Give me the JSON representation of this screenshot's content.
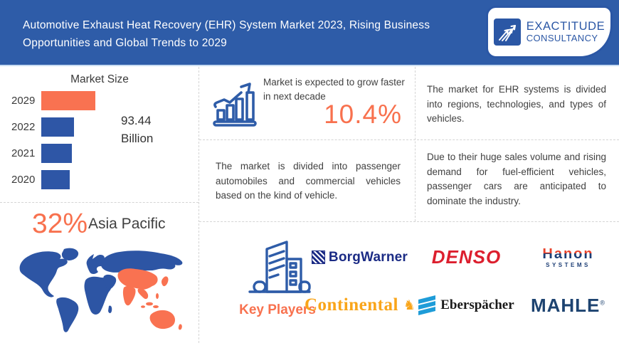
{
  "header": {
    "title": "Automotive Exhaust Heat Recovery (EHR) System Market 2023, Rising Business Opportunities and Global Trends to 2029",
    "logo": {
      "line1": "EXACTITUDE",
      "line2": "CONSULTANCY"
    }
  },
  "colors": {
    "primary_blue": "#2e5ca8",
    "bar_blue": "#2e56a6",
    "accent_orange": "#f8714e",
    "map_blue": "#2d55a4",
    "map_orange": "#f97251"
  },
  "chart_data": {
    "type": "bar",
    "orientation": "horizontal",
    "title": "Market Size",
    "categories": [
      "2029",
      "2022",
      "2021",
      "2020"
    ],
    "values_pct_of_max": [
      100,
      61,
      57,
      53
    ],
    "values_billion_est": [
      93.44,
      57,
      53,
      50
    ],
    "value_label": "93.44\nBillion",
    "bar_colors": [
      "#f97251",
      "#2e56a6",
      "#2e56a6",
      "#2e56a6"
    ],
    "xlabel": "",
    "ylabel": "",
    "grid": false,
    "legend": false
  },
  "growth": {
    "caption": "Market is expected to grow faster in next decade",
    "cagr": "10.4%"
  },
  "insights": {
    "regions_text": "The market for EHR systems is divided into regions, technologies, and types of vehicles.",
    "vehicles_text": "The market is divided into passenger automobiles and commercial vehicles based on the kind of vehicle.",
    "demand_text": "Due to their huge sales volume and rising demand for fuel-efficient vehicles, passenger cars are anticipated to dominate the industry."
  },
  "region_map": {
    "share": "32%",
    "region": "Asia Pacific",
    "highlight_color": "#f97251",
    "base_color": "#2d55a4"
  },
  "players": {
    "label": "Key Players",
    "logos": [
      {
        "name": "BorgWarner",
        "text": "BorgWarner"
      },
      {
        "name": "DENSO",
        "text": "DENSO"
      },
      {
        "name": "Hanon Systems",
        "text": "Hanon",
        "subtext": "SYSTEMS"
      },
      {
        "name": "Continental",
        "text": "Continental",
        "horse": "♞"
      },
      {
        "name": "Eberspächer",
        "text": "Eberspächer"
      },
      {
        "name": "MAHLE",
        "text": "MAHLE",
        "reg": "®"
      }
    ]
  }
}
